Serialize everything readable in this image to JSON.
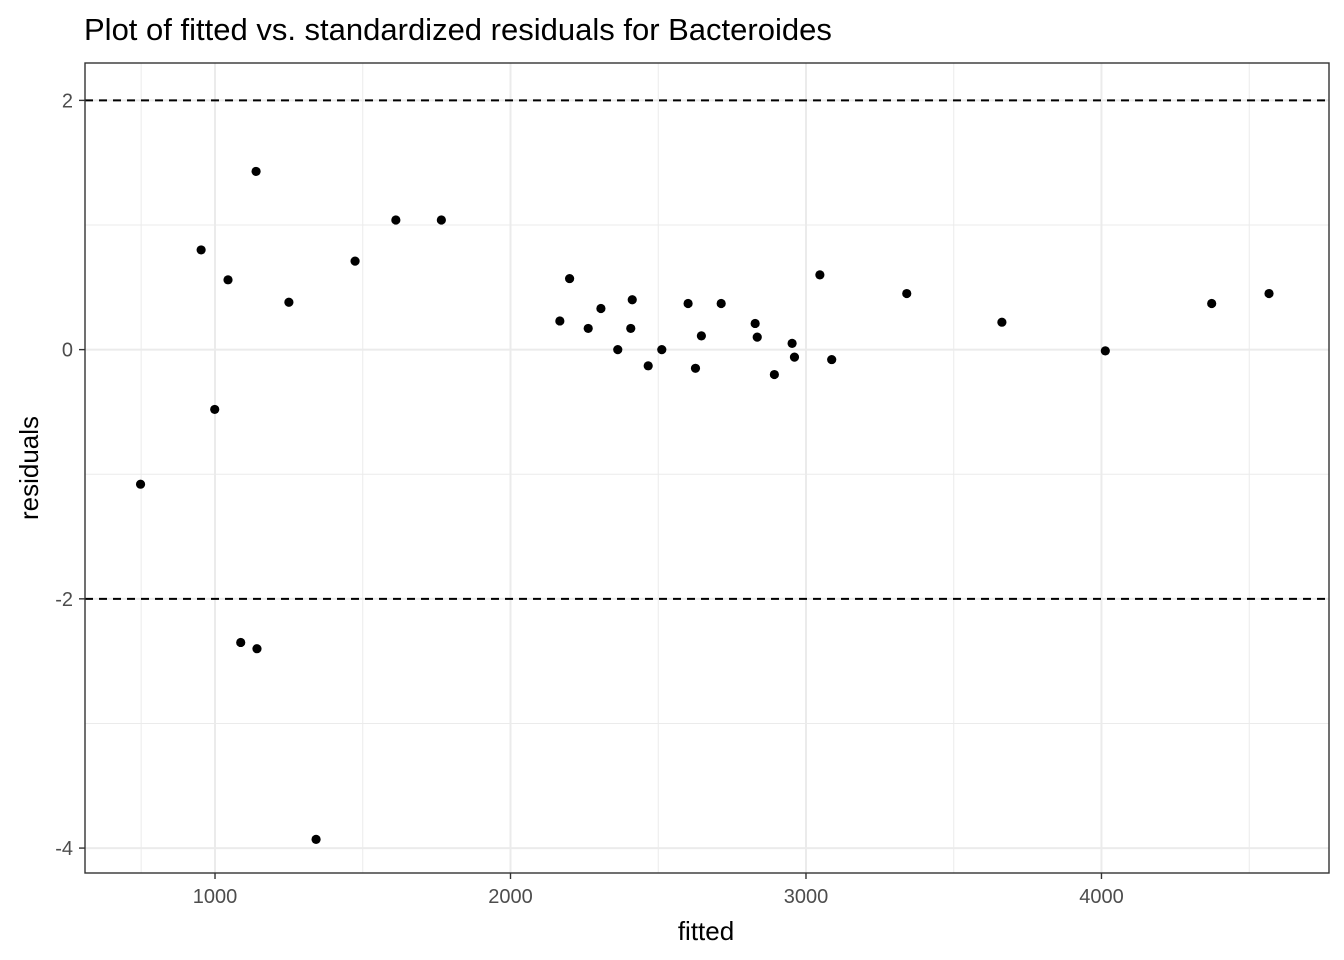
{
  "chart_data": {
    "type": "scatter",
    "title": "Plot of fitted vs. standardized residuals for Bacteroides",
    "xlabel": "fitted",
    "ylabel": "residuals",
    "xlim": [
      560,
      4770
    ],
    "ylim": [
      -4.2,
      2.3
    ],
    "xticks": [
      1000,
      2000,
      3000,
      4000
    ],
    "yticks": [
      -4,
      -2,
      0,
      2
    ],
    "xtick_labels": [
      "1000",
      "2000",
      "3000",
      "4000"
    ],
    "ytick_labels": [
      "-4",
      "-2",
      "0",
      "2"
    ],
    "x_minor_gridlines": [
      750,
      1500,
      2500,
      3500,
      4500
    ],
    "y_minor_gridlines": [
      -3,
      -1,
      1
    ],
    "reference_lines": [
      2,
      -2
    ],
    "grid": true,
    "legend": "none",
    "point_color": "#000000",
    "points": [
      {
        "x": 748,
        "y": -1.08
      },
      {
        "x": 953,
        "y": 0.8
      },
      {
        "x": 999,
        "y": -0.48
      },
      {
        "x": 1044,
        "y": 0.56
      },
      {
        "x": 1087,
        "y": -2.35
      },
      {
        "x": 1139,
        "y": 1.43
      },
      {
        "x": 1142,
        "y": -2.4
      },
      {
        "x": 1250,
        "y": 0.38
      },
      {
        "x": 1342,
        "y": -3.93
      },
      {
        "x": 1474,
        "y": 0.71
      },
      {
        "x": 1612,
        "y": 1.04
      },
      {
        "x": 1766,
        "y": 1.04
      },
      {
        "x": 2167,
        "y": 0.23
      },
      {
        "x": 2200,
        "y": 0.57
      },
      {
        "x": 2263,
        "y": 0.17
      },
      {
        "x": 2306,
        "y": 0.33
      },
      {
        "x": 2363,
        "y": 0.0
      },
      {
        "x": 2407,
        "y": 0.17
      },
      {
        "x": 2412,
        "y": 0.4
      },
      {
        "x": 2466,
        "y": -0.13
      },
      {
        "x": 2512,
        "y": 0.0
      },
      {
        "x": 2601,
        "y": 0.37
      },
      {
        "x": 2626,
        "y": -0.15
      },
      {
        "x": 2646,
        "y": 0.11
      },
      {
        "x": 2713,
        "y": 0.37
      },
      {
        "x": 2828,
        "y": 0.21
      },
      {
        "x": 2835,
        "y": 0.1
      },
      {
        "x": 2893,
        "y": -0.2
      },
      {
        "x": 2953,
        "y": 0.05
      },
      {
        "x": 2961,
        "y": -0.06
      },
      {
        "x": 3047,
        "y": 0.6
      },
      {
        "x": 3087,
        "y": -0.08
      },
      {
        "x": 3341,
        "y": 0.45
      },
      {
        "x": 3663,
        "y": 0.22
      },
      {
        "x": 4013,
        "y": -0.01
      },
      {
        "x": 4373,
        "y": 0.37
      },
      {
        "x": 4567,
        "y": 0.45
      }
    ]
  }
}
